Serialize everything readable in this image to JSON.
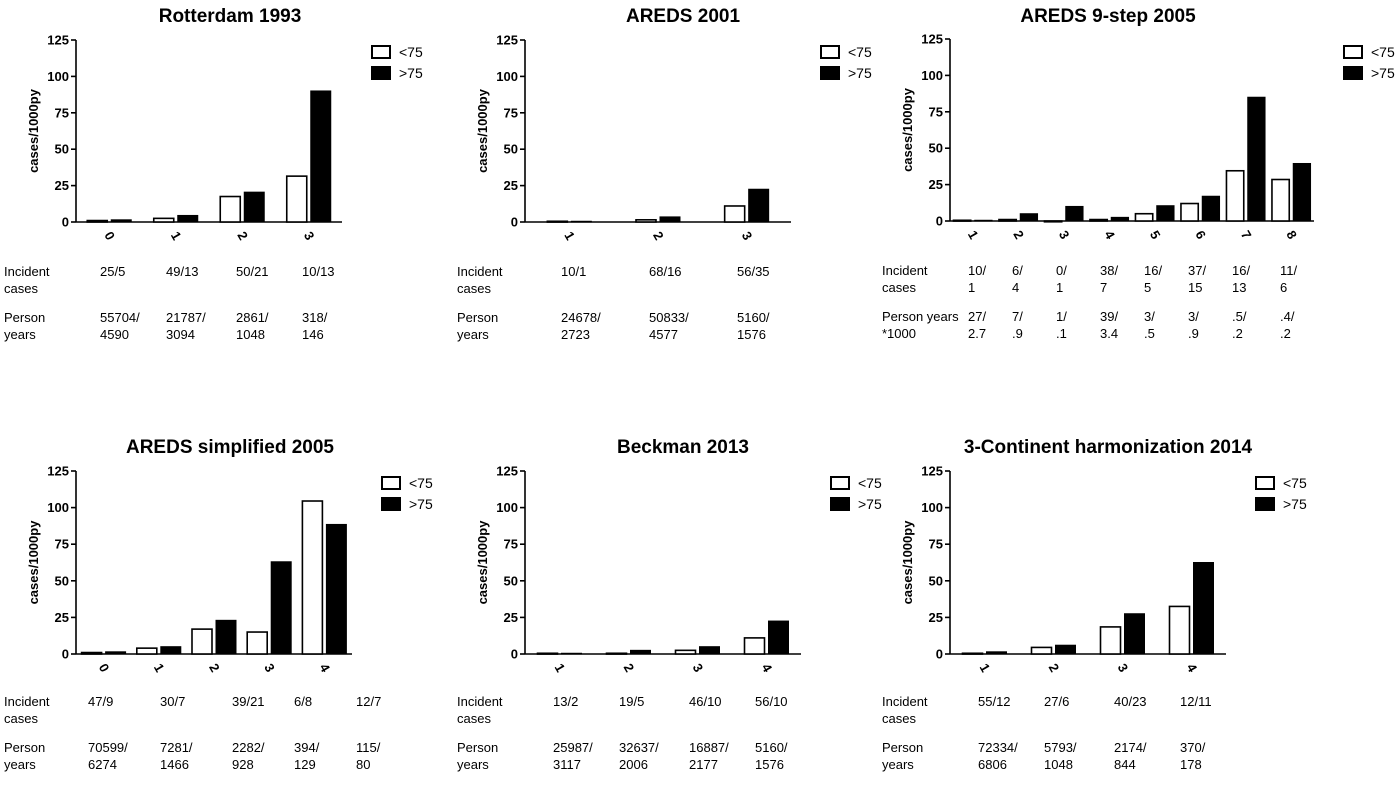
{
  "legend": {
    "lt75": "<75",
    "gt75": ">75"
  },
  "ylabel": "cases/1000py",
  "row_labels": {
    "incident": "Incident\ncases",
    "person": "Person\nyears",
    "person_k": "Person years\n*1000"
  },
  "chart_data": [
    {
      "type": "bar",
      "title": "Rotterdam 1993",
      "ylabel": "cases/1000py",
      "ylim": [
        0,
        125
      ],
      "yticks": [
        0,
        25,
        50,
        75,
        100,
        125
      ],
      "categories": [
        "0",
        "1",
        "2",
        "3"
      ],
      "series": [
        {
          "name": "<75",
          "values": [
            1,
            2.5,
            17.5,
            31.5
          ]
        },
        {
          "name": ">75",
          "values": [
            1.5,
            4.5,
            20.5,
            90
          ]
        }
      ],
      "legend_position": "top-right",
      "table": {
        "incident": [
          "25/5",
          "49/13",
          "50/21",
          "10/13"
        ],
        "person": [
          "55704/\n4590",
          "21787/\n3094",
          "2861/\n1048",
          "318/\n146"
        ],
        "person_label": "person"
      }
    },
    {
      "type": "bar",
      "title": "AREDS 2001",
      "ylabel": "cases/1000py",
      "ylim": [
        0,
        125
      ],
      "yticks": [
        0,
        25,
        50,
        75,
        100,
        125
      ],
      "categories": [
        "1",
        "2",
        "3"
      ],
      "series": [
        {
          "name": "<75",
          "values": [
            0.5,
            1.5,
            11
          ]
        },
        {
          "name": ">75",
          "values": [
            0.5,
            3.5,
            22.5
          ]
        }
      ],
      "legend_position": "top-right",
      "table": {
        "incident": [
          "10/1",
          "68/16",
          "56/35"
        ],
        "person": [
          "24678/\n2723",
          "50833/\n4577",
          "5160/\n1576"
        ],
        "person_label": "person"
      }
    },
    {
      "type": "bar",
      "title": "AREDS 9-step 2005",
      "ylabel": "cases/1000py",
      "ylim": [
        0,
        125
      ],
      "yticks": [
        0,
        25,
        50,
        75,
        100,
        125
      ],
      "categories": [
        "1",
        "2",
        "3",
        "4",
        "5",
        "6",
        "7",
        "8"
      ],
      "series": [
        {
          "name": "<75",
          "values": [
            0.5,
            1,
            0,
            1,
            5,
            12,
            34.5,
            28.5
          ]
        },
        {
          "name": ">75",
          "values": [
            0.5,
            5,
            10,
            2.5,
            10.5,
            17,
            85,
            39.5
          ]
        }
      ],
      "legend_position": "top-right",
      "table": {
        "incident": [
          "10/\n1",
          "6/\n4",
          "0/\n1",
          "38/\n7",
          "16/\n5",
          "37/\n15",
          "16/\n13",
          "11/\n6"
        ],
        "person": [
          "27/\n2.7",
          "7/\n.9",
          "1/\n.1",
          "39/\n3.4",
          "3/\n.5",
          "3/\n.9",
          ".5/\n.2",
          ".4/\n.2"
        ],
        "person_label": "person_k"
      }
    },
    {
      "type": "bar",
      "title": "AREDS simplified 2005",
      "ylabel": "cases/1000py",
      "ylim": [
        0,
        125
      ],
      "yticks": [
        0,
        25,
        50,
        75,
        100,
        125
      ],
      "categories": [
        "0",
        "1",
        "2",
        "3",
        "4"
      ],
      "series": [
        {
          "name": "<75",
          "values": [
            1,
            4,
            17,
            15,
            104.5
          ]
        },
        {
          "name": ">75",
          "values": [
            1.5,
            5,
            23,
            63,
            88.5
          ]
        }
      ],
      "legend_position": "top-right",
      "table": {
        "incident": [
          "47/9",
          "30/7",
          "39/21",
          "6/8",
          "12/7"
        ],
        "person": [
          "70599/\n6274",
          "7281/\n1466",
          "2282/\n928",
          "394/\n129",
          "115/\n80"
        ],
        "person_label": "person"
      }
    },
    {
      "type": "bar",
      "title": "Beckman 2013",
      "ylabel": "cases/1000py",
      "ylim": [
        0,
        125
      ],
      "yticks": [
        0,
        25,
        50,
        75,
        100,
        125
      ],
      "categories": [
        "1",
        "2",
        "3",
        "4"
      ],
      "series": [
        {
          "name": "<75",
          "values": [
            0.5,
            0.5,
            2.5,
            11
          ]
        },
        {
          "name": ">75",
          "values": [
            0.5,
            2.5,
            5,
            22.5
          ]
        }
      ],
      "legend_position": "top-right",
      "table": {
        "incident": [
          "13/2",
          "19/5",
          "46/10",
          "56/10"
        ],
        "person": [
          "25987/\n3117",
          "32637/\n2006",
          "16887/\n2177",
          "5160/\n1576"
        ],
        "person_label": "person"
      }
    },
    {
      "type": "bar",
      "title": "3-Continent harmonization 2014",
      "ylabel": "cases/1000py",
      "ylim": [
        0,
        125
      ],
      "yticks": [
        0,
        25,
        50,
        75,
        100,
        125
      ],
      "categories": [
        "1",
        "2",
        "3",
        "4"
      ],
      "series": [
        {
          "name": "<75",
          "values": [
            0.5,
            4.5,
            18.5,
            32.5
          ]
        },
        {
          "name": ">75",
          "values": [
            1.5,
            6,
            27.5,
            62.5
          ]
        }
      ],
      "legend_position": "top-right",
      "table": {
        "incident": [
          "55/12",
          "27/6",
          "40/23",
          "12/11"
        ],
        "person": [
          "72334/\n6806",
          "5793/\n1048",
          "2174/\n844",
          "370/\n178"
        ],
        "person_label": "person"
      }
    }
  ]
}
